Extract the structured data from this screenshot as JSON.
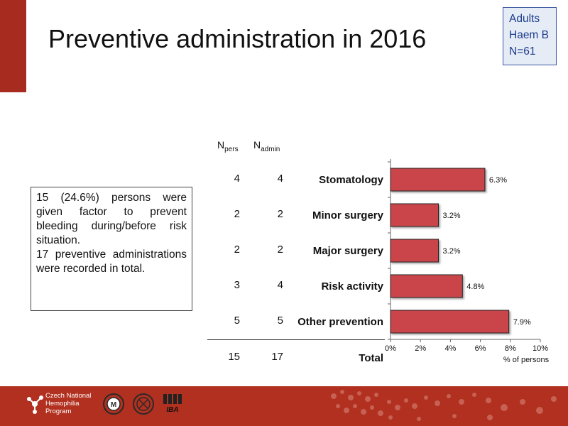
{
  "title": "Preventive administration in 2016",
  "badge": [
    "Adults",
    "Haem B",
    "N=61"
  ],
  "summary": {
    "p1": "15 (24.6%) persons were given factor to prevent bleeding during/before risk situation.",
    "p2": "17 preventive administrations were recorded in total."
  },
  "table": {
    "npers_base": "N",
    "npers_sub": "pers",
    "nadmin_base": "N",
    "nadmin_sub": "admin",
    "rows": [
      {
        "npers": "4",
        "nadmin": "4"
      },
      {
        "npers": "2",
        "nadmin": "2"
      },
      {
        "npers": "2",
        "nadmin": "2"
      },
      {
        "npers": "3",
        "nadmin": "4"
      },
      {
        "npers": "5",
        "nadmin": "5"
      }
    ],
    "total_label": "Total",
    "total_npers": "15",
    "total_nadmin": "17"
  },
  "chart_data": {
    "type": "bar",
    "orientation": "horizontal",
    "categories": [
      "Stomatology",
      "Minor surgery",
      "Major surgery",
      "Risk activity",
      "Other prevention"
    ],
    "values": [
      6.3,
      3.2,
      3.2,
      4.8,
      7.9
    ],
    "data_labels": [
      "6.3%",
      "3.2%",
      "3.2%",
      "4.8%",
      "7.9%"
    ],
    "xlabel": "% of persons",
    "xlim": [
      0,
      10
    ],
    "xticks": [
      0,
      2,
      4,
      6,
      8,
      10
    ],
    "xtick_labels": [
      "0%",
      "2%",
      "4%",
      "6%",
      "8%",
      "10%"
    ],
    "grid": false,
    "bar_color": "#c9444a"
  },
  "footer": {
    "org_lines": [
      "Czech National",
      "Hemophilia",
      "Program"
    ],
    "logo_label": "IBA",
    "color": "#b1301f"
  }
}
